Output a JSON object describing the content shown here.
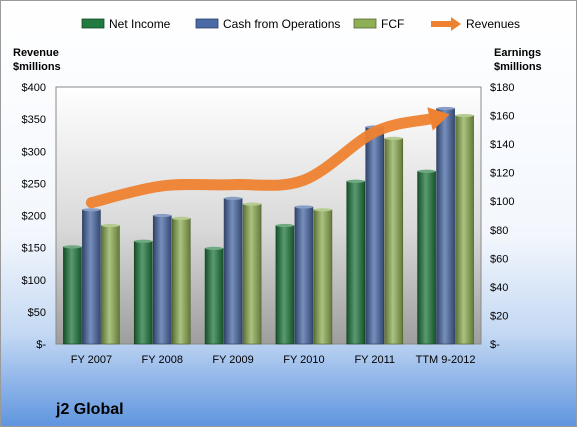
{
  "company": "j2 Global",
  "chart_data": {
    "type": "bar",
    "categories": [
      "FY 2007",
      "FY 2008",
      "FY 2009",
      "FY 2010",
      "FY 2011",
      "TTM 9-2012"
    ],
    "series": [
      {
        "name": "Net Income",
        "axis": "right",
        "color": "#217a3f",
        "values": [
          68,
          72,
          67,
          83,
          114,
          121
        ]
      },
      {
        "name": "Cash from Operations",
        "axis": "right",
        "color": "#4a6aa6",
        "values": [
          94,
          90,
          102,
          96,
          152,
          165
        ]
      },
      {
        "name": "FCF",
        "axis": "right",
        "color": "#8faf55",
        "values": [
          83,
          88,
          98,
          94,
          144,
          160
        ]
      },
      {
        "name": "Revenues",
        "axis": "left",
        "type": "line",
        "color": "#ee8230",
        "values": [
          220,
          246,
          248,
          255,
          330,
          356
        ]
      }
    ],
    "left_axis": {
      "title_lines": [
        "Revenue",
        "$millions"
      ],
      "range": [
        0,
        400
      ],
      "ticks": [
        0,
        50,
        100,
        150,
        200,
        250,
        300,
        350,
        400
      ],
      "tick_labels": [
        "$-",
        "$50",
        "$100",
        "$150",
        "$200",
        "$250",
        "$300",
        "$350",
        "$400"
      ]
    },
    "right_axis": {
      "title_lines": [
        "Earnings",
        "$millions"
      ],
      "range": [
        0,
        180
      ],
      "ticks": [
        0,
        20,
        40,
        60,
        80,
        100,
        120,
        140,
        160,
        180
      ],
      "tick_labels": [
        "$-",
        "$20",
        "$40",
        "$60",
        "$80",
        "$100",
        "$120",
        "$140",
        "$160",
        "$180"
      ]
    },
    "legend": {
      "position": "top",
      "items": [
        "Net Income",
        "Cash from Operations",
        "FCF",
        "Revenues"
      ]
    },
    "grid": false
  }
}
